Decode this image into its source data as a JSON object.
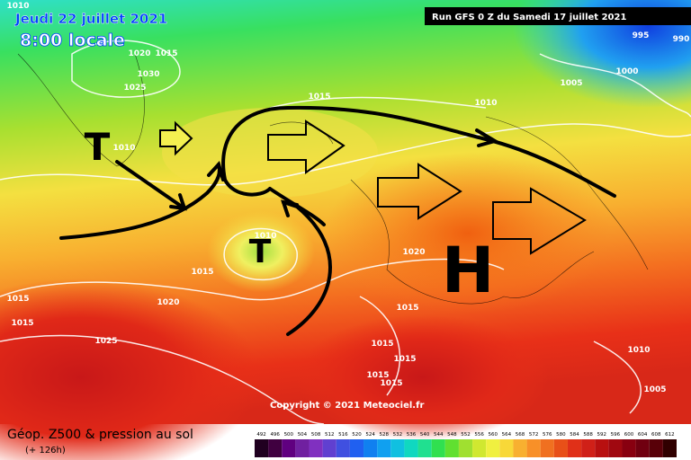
{
  "header": {
    "date": "Jeudi 22 juillet 2021",
    "time": "8:00 locale",
    "run": "Run GFS 0 Z du Samedi 17 juillet 2021"
  },
  "copyright": "Copyright © 2021 Meteociel.fr",
  "footer": {
    "title": "Géop. Z500 & pression au sol",
    "lead": "(+ 126h)"
  },
  "markers": [
    "T",
    "T",
    "H"
  ],
  "isobar_labels": [
    "1010",
    "1020",
    "1015",
    "1030",
    "1025",
    "1015",
    "1010",
    "1010",
    "1010",
    "1015",
    "1020",
    "1015",
    "1015",
    "1025",
    "1020",
    "1015",
    "1015",
    "1015",
    "1015",
    "1015",
    "1010",
    "1005",
    "1005",
    "1000",
    "995",
    "990"
  ],
  "colorbar": [
    492,
    496,
    500,
    504,
    508,
    512,
    516,
    520,
    524,
    528,
    532,
    536,
    540,
    544,
    548,
    552,
    556,
    560,
    564,
    568,
    572,
    576,
    580,
    584,
    588,
    592,
    596,
    600,
    604,
    608,
    612
  ]
}
